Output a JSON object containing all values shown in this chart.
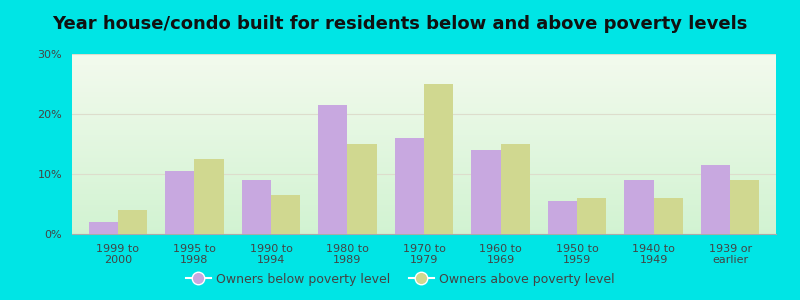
{
  "title": "Year house/condo built for residents below and above poverty levels",
  "categories": [
    "1999 to\n2000",
    "1995 to\n1998",
    "1990 to\n1994",
    "1980 to\n1989",
    "1970 to\n1979",
    "1960 to\n1969",
    "1950 to\n1959",
    "1940 to\n1949",
    "1939 or\nearlier"
  ],
  "below_poverty": [
    2.0,
    10.5,
    9.0,
    21.5,
    16.0,
    14.0,
    5.5,
    9.0,
    11.5
  ],
  "above_poverty": [
    4.0,
    12.5,
    6.5,
    15.0,
    25.0,
    15.0,
    6.0,
    6.0,
    9.0
  ],
  "below_color": "#c8a8e0",
  "above_color": "#d0d890",
  "ylim": [
    0,
    30
  ],
  "yticks": [
    0,
    10,
    20,
    30
  ],
  "ytick_labels": [
    "0%",
    "10%",
    "20%",
    "30%"
  ],
  "bar_width": 0.38,
  "background_outer": "#00e5e5",
  "grid_color": "#ddddcc",
  "title_fontsize": 13,
  "tick_fontsize": 8,
  "legend_fontsize": 9,
  "legend_below_label": "Owners below poverty level",
  "legend_above_label": "Owners above poverty level",
  "text_color": "#444444"
}
